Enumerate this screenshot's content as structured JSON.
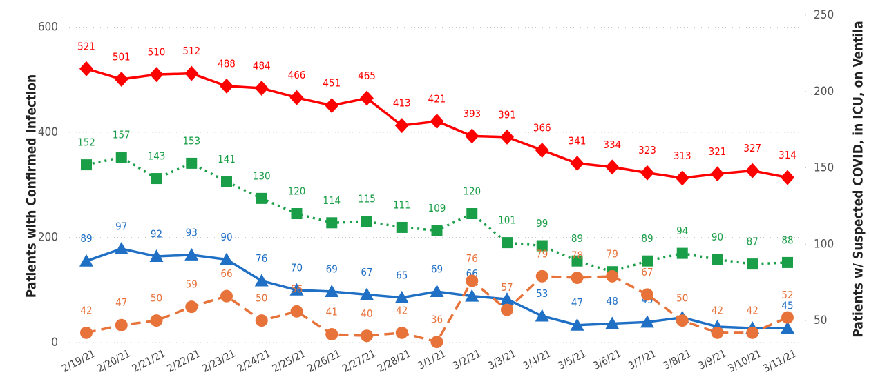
{
  "chart_data": {
    "type": "line",
    "y_label": "Patients with Confirmed Infection",
    "y2_label": "Patients w/ Suspected COVID, in ICU, on Ventila",
    "categories": [
      "2/19/21",
      "2/20/21",
      "2/21/21",
      "2/22/21",
      "2/23/21",
      "2/24/21",
      "2/25/21",
      "2/26/21",
      "2/27/21",
      "2/28/21",
      "3/1/21",
      "3/2/21",
      "3/3/21",
      "3/4/21",
      "3/5/21",
      "3/6/21",
      "3/7/21",
      "3/8/21",
      "3/9/21",
      "3/10/21",
      "3/11/21"
    ],
    "ylim": [
      0,
      623
    ],
    "yticks": [
      0,
      200,
      400,
      600
    ],
    "y2lim": [
      35.6,
      250
    ],
    "y2ticks": [
      50,
      100,
      150,
      200,
      250
    ],
    "grid": true,
    "series": [
      {
        "color": "#ff0000",
        "marker": "diamond",
        "dash": "solid",
        "values": [
          521,
          501,
          510,
          512,
          488,
          484,
          466,
          451,
          465,
          413,
          421,
          393,
          391,
          366,
          341,
          334,
          323,
          313,
          321,
          327,
          314
        ]
      },
      {
        "color": "#1a9e47",
        "marker": "square",
        "dash": "dotted",
        "axis": "y2",
        "values": [
          152,
          157,
          143,
          153,
          141,
          130,
          120,
          114,
          115,
          111,
          109,
          120,
          101,
          99,
          89,
          82,
          89,
          94,
          90,
          87,
          88
        ],
        "value_labels": [
          "152",
          "157",
          "143",
          "153",
          "141",
          "130",
          "120",
          "114",
          "115",
          "111",
          "109",
          "120",
          "101",
          "99",
          "89",
          null,
          "89",
          "94",
          "90",
          "87",
          "88"
        ]
      },
      {
        "color": "#1f6fc5",
        "marker": "triangle",
        "dash": "solid",
        "axis": "y2",
        "values": [
          89,
          97,
          92,
          93,
          90,
          76,
          70,
          69,
          67,
          65,
          69,
          66,
          64,
          53,
          47,
          48,
          49,
          52,
          46,
          45,
          45
        ],
        "value_labels": [
          "89",
          "97",
          "92",
          "93",
          "90",
          "76",
          "70",
          "69",
          "67",
          "65",
          "69",
          "66",
          null,
          "53",
          "47",
          "48",
          "49",
          null,
          null,
          null,
          "45"
        ]
      },
      {
        "color": "#e8733a",
        "marker": "circle",
        "dash": "dashed",
        "axis": "y2",
        "values": [
          42,
          47,
          50,
          59,
          66,
          50,
          56,
          41,
          40,
          42,
          36,
          76,
          57,
          79,
          78,
          79,
          67,
          50,
          42,
          42,
          52
        ]
      }
    ]
  }
}
